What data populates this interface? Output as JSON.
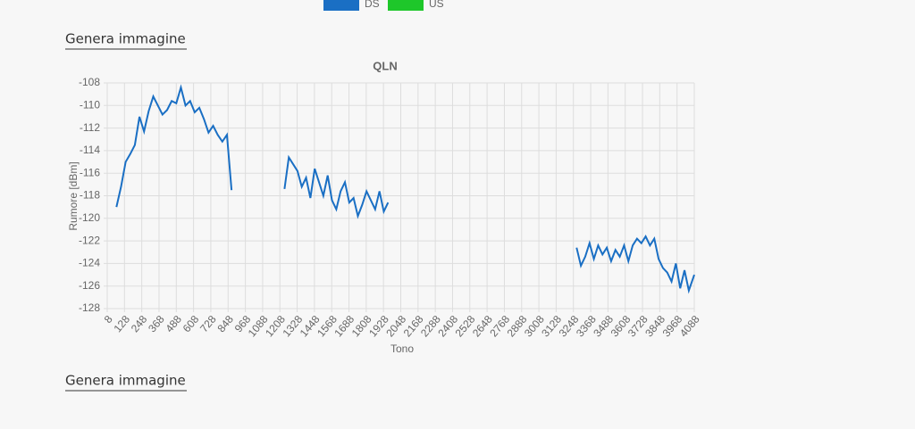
{
  "links": [
    "Genera immagine",
    "Genera immagine"
  ],
  "chart_data": {
    "type": "line",
    "title": "QLN",
    "x_label": "Tono",
    "y_label": "Rumore [dBm]",
    "x": [
      72,
      104,
      136,
      168,
      200,
      232,
      264,
      296,
      328,
      360,
      392,
      424,
      456,
      488,
      520,
      552,
      584,
      616,
      648,
      680,
      712,
      744,
      776,
      808,
      840,
      872,
      1000,
      1240,
      1270,
      1300,
      1330,
      1360,
      1390,
      1420,
      1450,
      1480,
      1510,
      1540,
      1570,
      1600,
      1630,
      1660,
      1690,
      1720,
      1750,
      1780,
      1810,
      1840,
      1870,
      1900,
      1930,
      1960,
      2600,
      3270,
      3300,
      3330,
      3360,
      3390,
      3420,
      3450,
      3480,
      3510,
      3540,
      3570,
      3600,
      3630,
      3660,
      3690,
      3720,
      3750,
      3780,
      3810,
      3840,
      3870,
      3900,
      3930,
      3960,
      3990,
      4020,
      4050,
      4088
    ],
    "series": [
      {
        "name": "DS",
        "color": "#1a6fc4",
        "values": [
          -119,
          -117.2,
          -115,
          -114.3,
          -113.5,
          -111,
          -112.3,
          -110.5,
          -109.2,
          -110,
          -110.8,
          -110.4,
          -109.6,
          -109.8,
          -108.4,
          -110,
          -109.6,
          -110.6,
          -110.2,
          -111.2,
          -112.4,
          -111.8,
          -112.6,
          -113.2,
          -112.6,
          -117.5,
          null,
          -117.4,
          -114.6,
          -115.2,
          -115.8,
          -117.2,
          -116.4,
          -118.2,
          -115.6,
          -116.8,
          -118,
          -116.2,
          -118.4,
          -119.2,
          -117.6,
          -116.8,
          -118.6,
          -118.2,
          -119.8,
          -118.8,
          -117.6,
          -118.4,
          -119.2,
          -117.6,
          -119.4,
          -118.6,
          null,
          -122.6,
          -124.2,
          -123.4,
          -122.2,
          -123.6,
          -122.4,
          -123.2,
          -122.6,
          -123.8,
          -122.8,
          -123.4,
          -122.4,
          -123.8,
          -122.4,
          -121.8,
          -122.2,
          -121.6,
          -122.4,
          -121.8,
          -123.6,
          -124.4,
          -124.8,
          -125.6,
          -124,
          -126.2,
          -124.6,
          -126.4,
          -125
        ]
      },
      {
        "name": "US",
        "color": "#1ec72a",
        "values": [
          null,
          null,
          null,
          null,
          null,
          null,
          null,
          null,
          null,
          null,
          null,
          null,
          null,
          null,
          null,
          null,
          null,
          null,
          null,
          null,
          null,
          null,
          null,
          null,
          null,
          null,
          null,
          null,
          null,
          null,
          null,
          null,
          null,
          null,
          null,
          null,
          null,
          null,
          null,
          null,
          null,
          null,
          null,
          null,
          null,
          null,
          null,
          null,
          null,
          null,
          null,
          null,
          null,
          null,
          null,
          null,
          null,
          null,
          null,
          null,
          null,
          null,
          null,
          null,
          null,
          null,
          null,
          null,
          null,
          null,
          null,
          null,
          null,
          null,
          null,
          null,
          null,
          null,
          null,
          null,
          null
        ]
      }
    ],
    "xlim": [
      8,
      4088
    ],
    "xticks": [
      8,
      128,
      248,
      368,
      488,
      608,
      728,
      848,
      968,
      1088,
      1208,
      1328,
      1448,
      1568,
      1688,
      1808,
      1928,
      2048,
      2168,
      2288,
      2408,
      2528,
      2648,
      2768,
      2888,
      3008,
      3128,
      3248,
      3368,
      3488,
      3608,
      3728,
      3848,
      3968,
      4088
    ],
    "ylim": [
      -128,
      -108
    ],
    "yticks": [
      -108,
      -110,
      -112,
      -114,
      -116,
      -118,
      -120,
      -122,
      -124,
      -126,
      -128
    ],
    "grid": true
  }
}
